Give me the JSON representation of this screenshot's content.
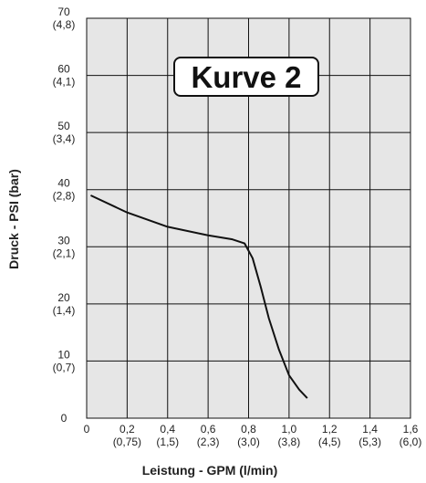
{
  "chart_data": {
    "type": "line",
    "annotation": "Kurve 2",
    "x_label": "Leistung - GPM (l/min)",
    "y_label": "Druck - PSI (bar)",
    "xlim": [
      0,
      1.6
    ],
    "ylim": [
      0,
      70
    ],
    "xticks": [
      0,
      {
        "value": 0.2,
        "label": "0,2\n(0,75)"
      },
      {
        "value": 0.4,
        "label": "0,4\n(1,5)"
      },
      {
        "value": 0.6,
        "label": "0,6\n(2,3)"
      },
      {
        "value": 0.8,
        "label": "0,8\n(3,0)"
      },
      {
        "value": 1.0,
        "label": "1,0\n(3,8)"
      },
      {
        "value": 1.2,
        "label": "1,2\n(4,5)"
      },
      {
        "value": 1.4,
        "label": "1,4\n(5,3)"
      },
      {
        "value": 1.6,
        "label": "1,6\n(6,0)"
      }
    ],
    "yticks": [
      0,
      {
        "value": 10,
        "label": "10\n(0,7)"
      },
      {
        "value": 20,
        "label": "20\n(1,4)"
      },
      {
        "value": 30,
        "label": "30\n(2,1)"
      },
      {
        "value": 40,
        "label": "40\n(2,8)"
      },
      {
        "value": 50,
        "label": "50\n(3,4)"
      },
      {
        "value": 60,
        "label": "60\n(4,1)"
      },
      {
        "value": 70,
        "label": "70\n(4,8)"
      }
    ],
    "grid": true,
    "x": [
      0.02,
      0.2,
      0.4,
      0.6,
      0.72,
      0.78,
      0.82,
      0.86,
      0.9,
      0.95,
      1.0,
      1.05,
      1.09
    ],
    "series": [
      {
        "color": "#111111",
        "values": [
          39,
          36,
          33.5,
          32,
          31.3,
          30.6,
          28,
          23,
          17.5,
          12,
          7.5,
          5,
          3.5
        ]
      }
    ]
  }
}
